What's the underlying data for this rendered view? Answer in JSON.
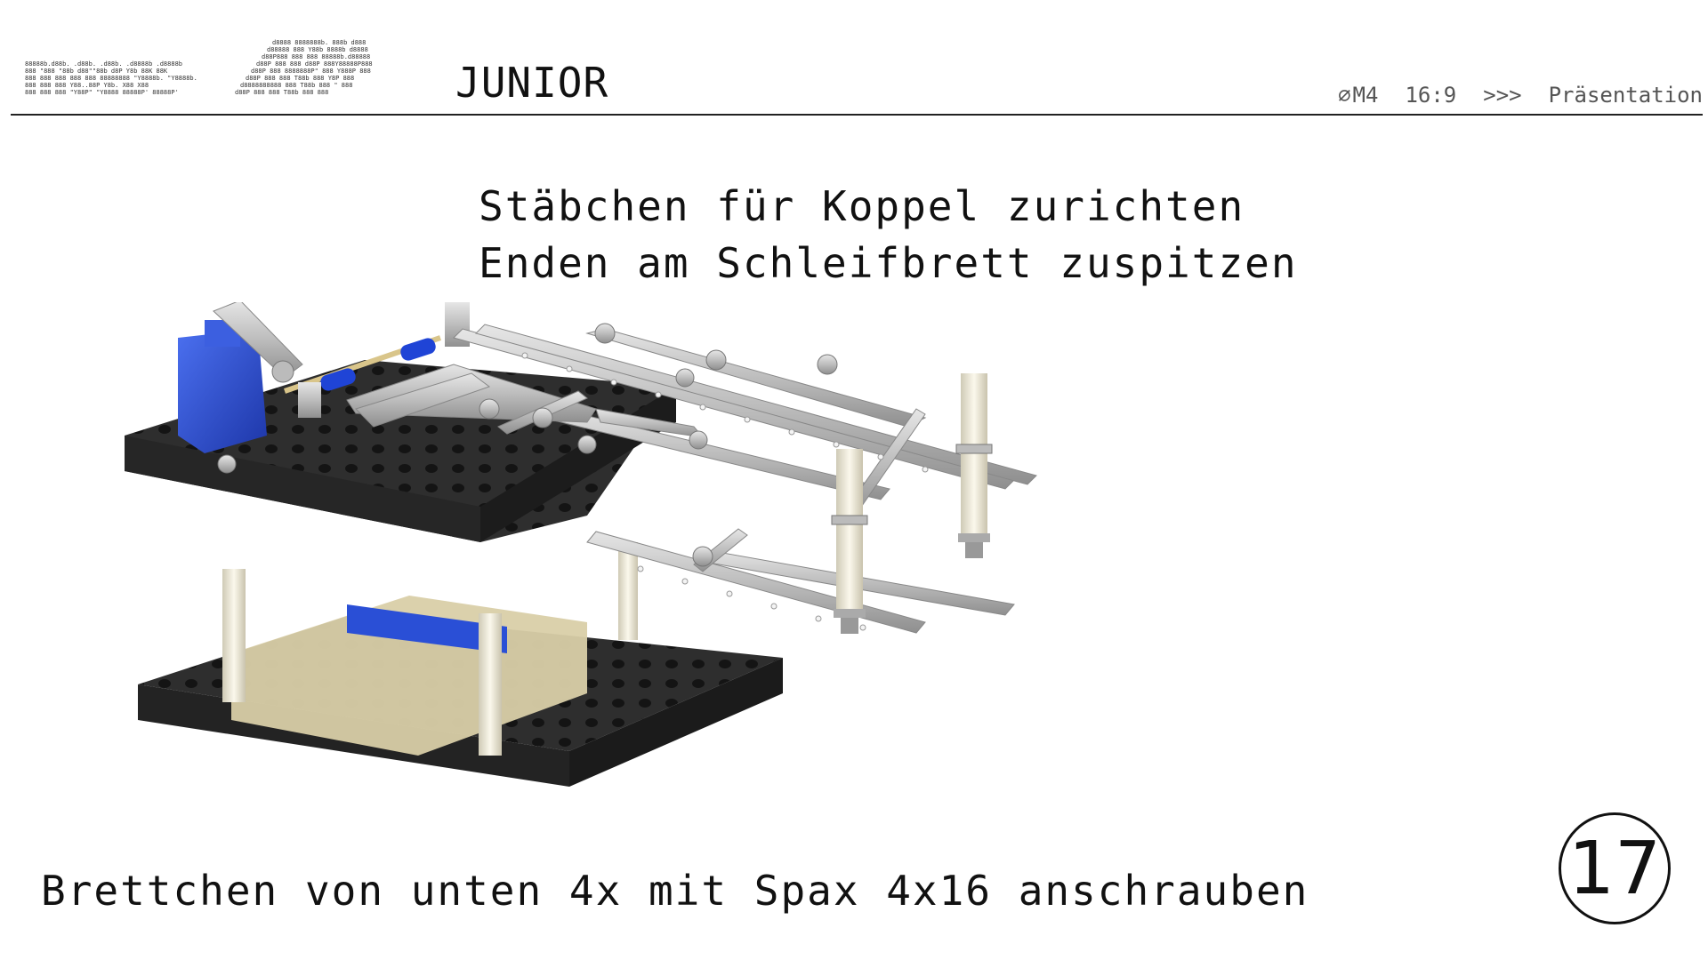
{
  "header": {
    "logo_suffix": "JUNIOR",
    "size_label": "M4",
    "ratio_label": "16:9",
    "arrows_label": ">>>",
    "mode_label": "Präsentation"
  },
  "slide": {
    "top_caption": "Stäbchen für Koppel zurichten\nEnden am Schleifbrett zuspitzen",
    "bottom_caption": "Brettchen von unten 4x mit Spax 4x16 anschrauben",
    "page_number": "17"
  },
  "colors": {
    "board": "#2b2b2b",
    "servo": "#2a4fd6",
    "metal": "#c8c8c8",
    "standoff": "#ece8d8",
    "base_block": "#d8cfa8"
  },
  "icons": [
    "diameter-icon"
  ]
}
